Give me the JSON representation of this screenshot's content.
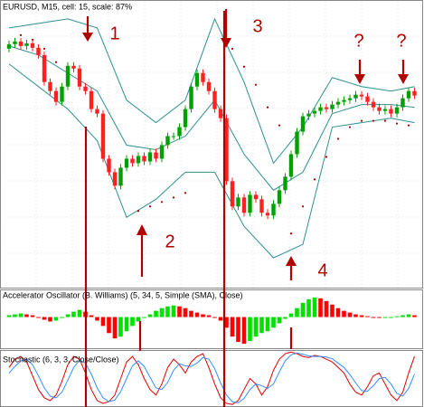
{
  "chart_data": [
    {
      "type": "candlestick",
      "title": "EURUSD, M15, cell: 15, scale: 87%",
      "open": [
        265,
        270,
        273,
        268,
        271,
        266,
        258,
        228,
        218,
        206,
        223,
        246,
        243,
        223,
        218,
        198,
        193,
        143,
        128,
        113,
        133,
        143,
        138,
        146,
        140,
        150,
        143,
        158,
        168,
        168,
        178,
        198,
        223,
        238,
        228,
        218,
        198,
        188,
        118,
        90,
        100,
        83,
        103,
        98,
        83,
        80,
        93,
        108,
        123,
        148,
        173,
        190,
        193,
        196,
        200,
        198,
        203,
        206,
        208,
        210,
        214,
        212,
        206,
        200,
        196,
        198,
        193,
        200,
        210,
        218
      ],
      "high": [
        274,
        277,
        277,
        275,
        275,
        270,
        262,
        232,
        222,
        227,
        250,
        250,
        247,
        227,
        222,
        202,
        197,
        147,
        132,
        137,
        147,
        147,
        150,
        150,
        154,
        154,
        162,
        172,
        172,
        182,
        202,
        227,
        242,
        242,
        232,
        222,
        202,
        192,
        122,
        104,
        104,
        107,
        107,
        102,
        87,
        97,
        112,
        127,
        152,
        177,
        194,
        197,
        200,
        204,
        204,
        207,
        210,
        212,
        214,
        218,
        218,
        216,
        210,
        204,
        202,
        202,
        204,
        214,
        222,
        222
      ],
      "low": [
        261,
        266,
        264,
        264,
        262,
        254,
        224,
        214,
        202,
        202,
        219,
        239,
        219,
        214,
        194,
        189,
        139,
        124,
        109,
        109,
        129,
        134,
        134,
        136,
        136,
        139,
        139,
        154,
        164,
        164,
        174,
        194,
        219,
        224,
        214,
        194,
        184,
        114,
        86,
        86,
        79,
        79,
        94,
        79,
        76,
        76,
        89,
        104,
        119,
        144,
        169,
        186,
        189,
        192,
        194,
        194,
        199,
        202,
        204,
        206,
        208,
        202,
        196,
        192,
        192,
        189,
        189,
        196,
        206,
        209
      ],
      "close": [
        270,
        273,
        268,
        271,
        266,
        258,
        228,
        218,
        206,
        223,
        246,
        243,
        223,
        218,
        198,
        193,
        143,
        128,
        113,
        133,
        143,
        138,
        146,
        140,
        150,
        143,
        158,
        168,
        168,
        178,
        198,
        223,
        238,
        228,
        218,
        198,
        188,
        118,
        90,
        100,
        83,
        103,
        98,
        83,
        80,
        93,
        108,
        123,
        148,
        173,
        190,
        193,
        196,
        200,
        198,
        203,
        206,
        208,
        210,
        214,
        212,
        206,
        200,
        196,
        198,
        193,
        200,
        210,
        218,
        213
      ],
      "up_color": "#00a000",
      "down_color": "#ff2020",
      "ylim": [
        0,
        318
      ],
      "grid": true,
      "bands": {
        "x": [
          0,
          5,
          10,
          15,
          20,
          25,
          30,
          35,
          40,
          45,
          50,
          55,
          60,
          65,
          69
        ],
        "color": "#2f8f8f",
        "upper": [
          288,
          293,
          298,
          288,
          208,
          183,
          208,
          298,
          228,
          138,
          178,
          233,
          223,
          218,
          223
        ],
        "middle": [
          268,
          258,
          238,
          218,
          158,
          153,
          168,
          208,
          148,
          108,
          128,
          193,
          203,
          203,
          200
        ],
        "lower": [
          248,
          223,
          198,
          163,
          78,
          98,
          128,
          128,
          68,
          33,
          48,
          178,
          183,
          188,
          183
        ]
      },
      "sar": {
        "x": [
          2,
          4,
          6,
          8,
          10,
          22,
          24,
          26,
          28,
          30,
          38,
          40,
          42,
          44,
          46,
          48,
          50,
          52,
          54,
          56,
          58,
          60,
          62,
          64,
          66,
          68
        ],
        "color": "#a00000",
        "values": [
          280,
          275,
          265,
          250,
          232,
          85,
          90,
          95,
          100,
          105,
          265,
          245,
          225,
          200,
          180,
          60,
          90,
          120,
          145,
          165,
          178,
          185,
          185,
          185,
          182,
          180
        ]
      },
      "annotations": [
        "1",
        "2",
        "3",
        "4",
        "?",
        "?"
      ]
    },
    {
      "type": "bar",
      "title": "Accelerator Oscillator (B. Williams) (5, 34, 5, Simple (SMA), Close)",
      "values": [
        2,
        3,
        4,
        3,
        2,
        0,
        -3,
        -5,
        -4,
        -1,
        3,
        6,
        8,
        6,
        2,
        -4,
        -10,
        -18,
        -24,
        -22,
        -16,
        -10,
        -5,
        -1,
        3,
        7,
        10,
        12,
        13,
        12,
        10,
        7,
        5,
        3,
        2,
        0,
        -4,
        -12,
        -22,
        -28,
        -30,
        -27,
        -22,
        -18,
        -16,
        -12,
        -7,
        -2,
        4,
        10,
        16,
        20,
        22,
        21,
        18,
        14,
        10,
        7,
        5,
        3,
        2,
        1,
        0,
        -1,
        -1,
        0,
        1,
        2,
        3,
        2
      ],
      "up_color": "#00e000",
      "down_color": "#ff0000",
      "ylim": [
        -35,
        30
      ]
    },
    {
      "type": "line",
      "title": "Stochastic (6, 3, 3, Close/Close)",
      "ylim": [
        0,
        100
      ],
      "series": [
        {
          "color": "#e00000",
          "values": [
            70,
            85,
            90,
            80,
            55,
            30,
            15,
            10,
            20,
            45,
            75,
            90,
            85,
            60,
            30,
            10,
            5,
            8,
            20,
            50,
            80,
            90,
            75,
            50,
            30,
            20,
            40,
            70,
            85,
            75,
            60,
            80,
            90,
            95,
            70,
            40,
            15,
            5,
            3,
            10,
            30,
            50,
            40,
            20,
            35,
            65,
            85,
            95,
            98,
            95,
            90,
            88,
            92,
            90,
            85,
            80,
            70,
            60,
            40,
            25,
            20,
            35,
            55,
            60,
            40,
            20,
            10,
            25,
            60,
            90
          ]
        },
        {
          "color": "#3090ff",
          "values": [
            60,
            72,
            82,
            85,
            75,
            55,
            33,
            18,
            15,
            25,
            47,
            70,
            83,
            78,
            58,
            33,
            15,
            8,
            11,
            26,
            50,
            73,
            82,
            72,
            52,
            33,
            30,
            43,
            65,
            77,
            73,
            72,
            78,
            88,
            85,
            68,
            42,
            20,
            8,
            6,
            14,
            30,
            40,
            37,
            32,
            40,
            62,
            82,
            93,
            96,
            94,
            91,
            90,
            90,
            89,
            86,
            78,
            70,
            57,
            42,
            28,
            27,
            37,
            50,
            52,
            40,
            23,
            18,
            32,
            58
          ]
        }
      ]
    }
  ]
}
